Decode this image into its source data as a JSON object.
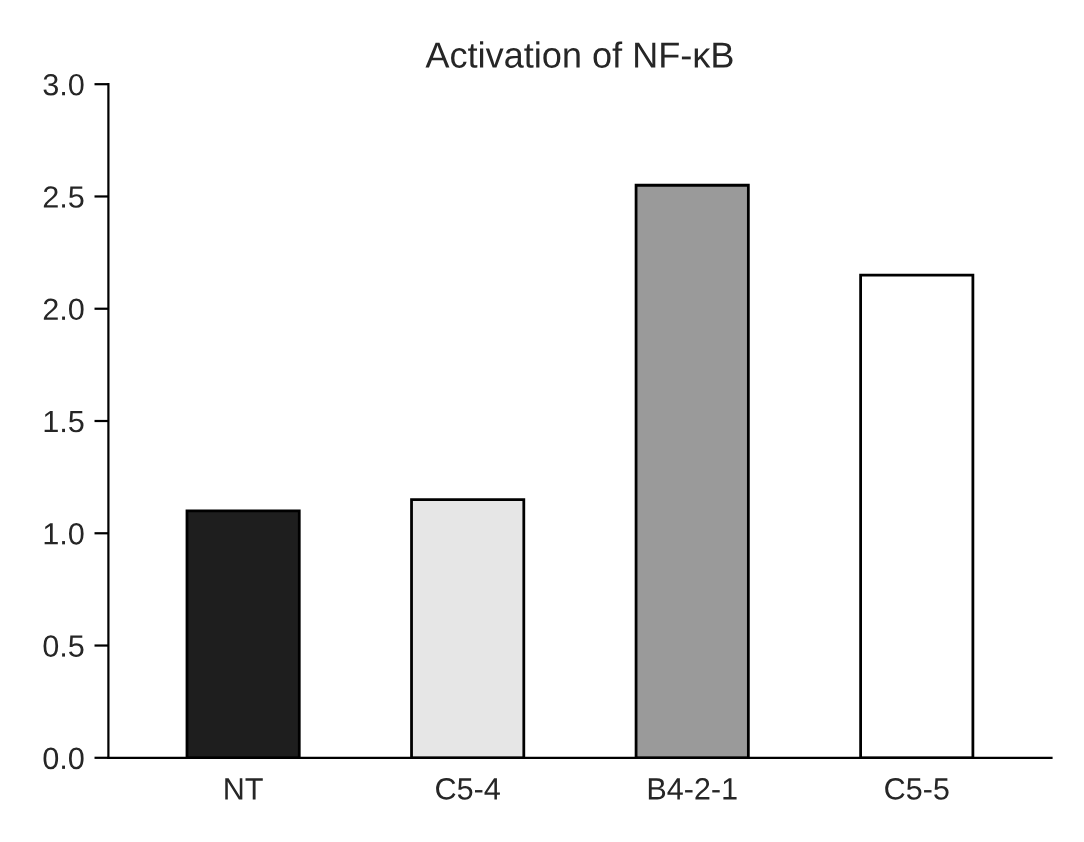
{
  "chart_data": {
    "type": "bar",
    "title": "Activation of NF-κB",
    "categories": [
      "NT",
      "C5-4",
      "B4-2-1",
      "C5-5"
    ],
    "values": [
      1.1,
      1.15,
      2.55,
      2.15
    ],
    "colors": [
      "#1e1e1e",
      "#e6e6e6",
      "#9a9a9a",
      "#ffffff"
    ],
    "ylim": [
      0,
      3
    ],
    "yticks": [
      {
        "value": 0,
        "label": "0.0"
      },
      {
        "value": 0.5,
        "label": "0.5"
      },
      {
        "value": 1,
        "label": "1.0"
      },
      {
        "value": 1.5,
        "label": "1.5"
      },
      {
        "value": 2,
        "label": "2.0"
      },
      {
        "value": 2.5,
        "label": "2.5"
      },
      {
        "value": 3,
        "label": "3.0"
      }
    ],
    "grid": false
  }
}
